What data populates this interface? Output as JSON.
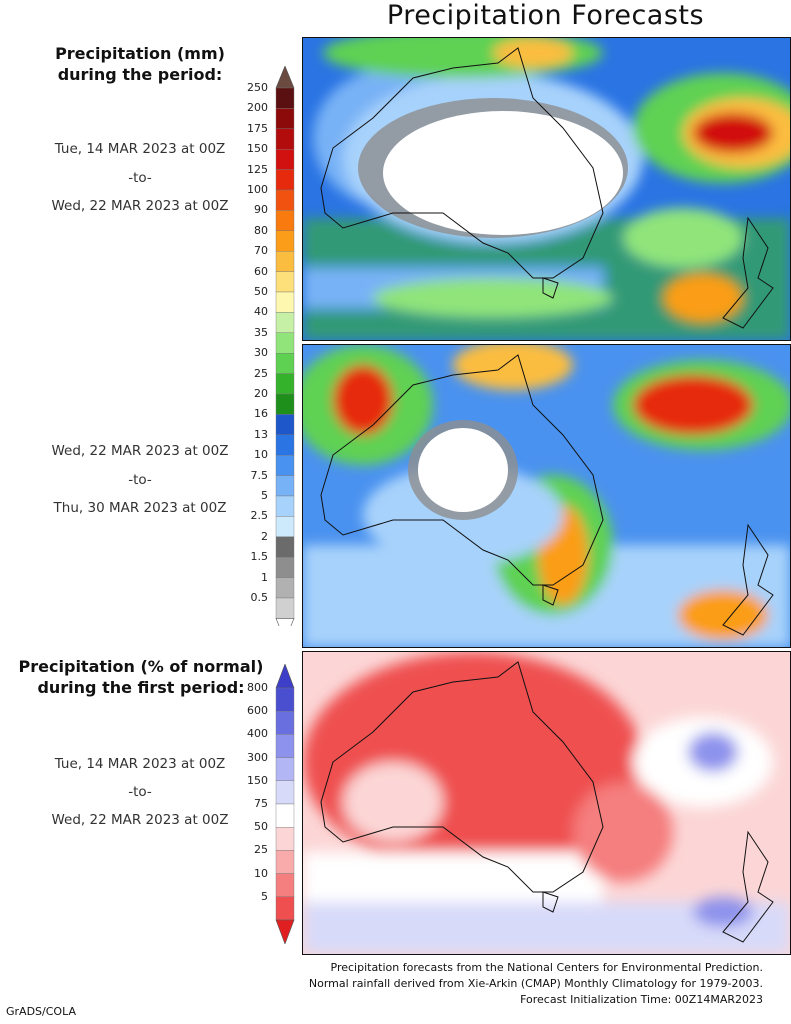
{
  "title": "Precipitation Forecasts",
  "section1": {
    "heading_line1": "Precipitation (mm)",
    "heading_line2": "during the period:"
  },
  "period1": {
    "start": "Tue, 14 MAR 2023 at 00Z",
    "sep": "-to-",
    "end": "Wed, 22 MAR 2023 at 00Z"
  },
  "period2": {
    "start": "Wed, 22 MAR 2023 at 00Z",
    "sep": "-to-",
    "end": "Thu, 30 MAR 2023 at 00Z"
  },
  "section2": {
    "heading_line1": "Precipitation (% of normal)",
    "heading_line2": "during the first period:"
  },
  "period3": {
    "start": "Tue, 14 MAR 2023 at 00Z",
    "sep": "-to-",
    "end": "Wed, 22 MAR 2023 at 00Z"
  },
  "mm_scale": {
    "labels": [
      "250",
      "200",
      "175",
      "150",
      "125",
      "100",
      "90",
      "80",
      "70",
      "60",
      "50",
      "40",
      "35",
      "30",
      "25",
      "20",
      "16",
      "13",
      "10",
      "7.5",
      "5",
      "2.5",
      "2",
      "1.5",
      "1",
      "0.5"
    ],
    "colors": [
      "#5a1010",
      "#8c0a0a",
      "#b20c0c",
      "#d11010",
      "#e62a0e",
      "#f2520f",
      "#f97a0e",
      "#fb9d18",
      "#fbbd40",
      "#fde07a",
      "#fdf7b0",
      "#c6f0a6",
      "#90e47a",
      "#5fd152",
      "#35b22c",
      "#1f8f1c",
      "#1d57c9",
      "#2a74e3",
      "#4a92ef",
      "#78b2f6",
      "#a7d2fb",
      "#cdeafc",
      "#6b6b6b",
      "#8e8e8e",
      "#b1b1b1",
      "#d0d0d0"
    ],
    "top_cap_color": "#6b4a3f",
    "bottom_cap_color": "#ffffff"
  },
  "pct_scale": {
    "labels": [
      "800",
      "600",
      "400",
      "300",
      "150",
      "75",
      "50",
      "25",
      "10",
      "5"
    ],
    "colors": [
      "#4a4fd0",
      "#6a6fe0",
      "#8d92ec",
      "#b3b6f5",
      "#d8daf9",
      "#ffffff",
      "#fcd6d6",
      "#f9aaaa",
      "#f57e7e",
      "#ef4f4f"
    ],
    "top_cap_color": "#3d3fc8",
    "bottom_cap_color": "#e02020"
  },
  "footer": {
    "line1": "Precipitation forecasts from the National Centers for Environmental Prediction.",
    "line2": "Normal rainfall derived from Xie-Arkin (CMAP) Monthly Climatology for 1979-2003.",
    "line3": "Forecast Initialization Time: 00Z14MAR2023"
  },
  "credit": "GrADS/COLA"
}
